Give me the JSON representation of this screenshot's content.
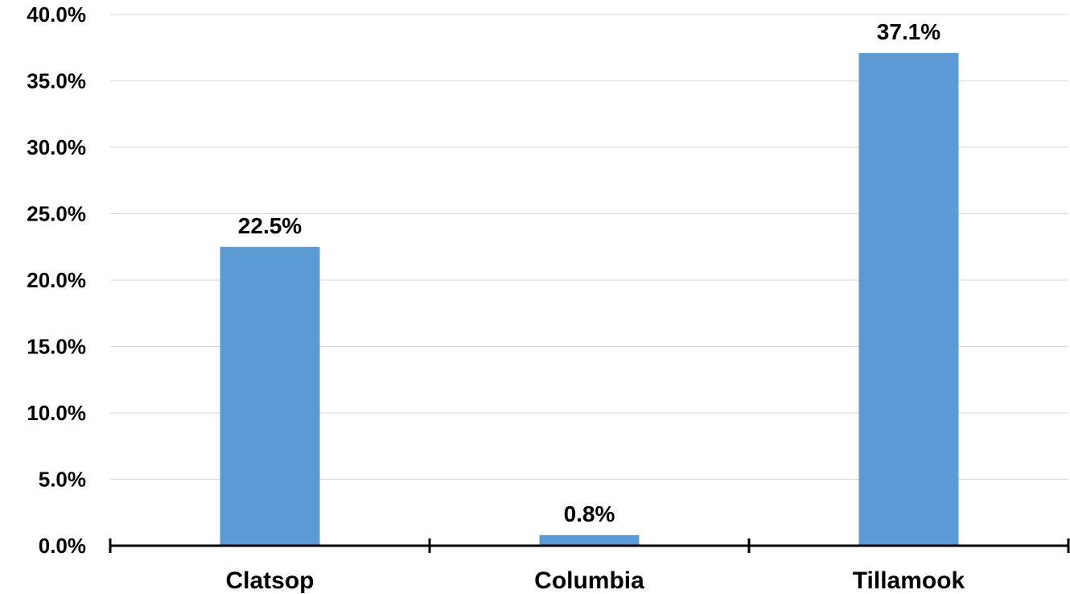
{
  "chart_data": {
    "type": "bar",
    "categories": [
      "Clatsop",
      "Columbia",
      "Tillamook"
    ],
    "values": [
      22.5,
      0.8,
      37.1
    ],
    "value_labels": [
      "22.5%",
      "0.8%",
      "37.1%"
    ],
    "title": "",
    "xlabel": "",
    "ylabel": "",
    "ylim": [
      0,
      40
    ],
    "y_ticks": [
      0,
      5,
      10,
      15,
      20,
      25,
      30,
      35,
      40
    ],
    "y_tick_labels": [
      "0.0%",
      "5.0%",
      "10.0%",
      "15.0%",
      "20.0%",
      "25.0%",
      "30.0%",
      "35.0%",
      "40.0%"
    ],
    "grid": true,
    "legend": "none",
    "colors": {
      "bar": "#5b9bd5",
      "grid": "#d9d9d9",
      "axis": "#000000"
    }
  }
}
